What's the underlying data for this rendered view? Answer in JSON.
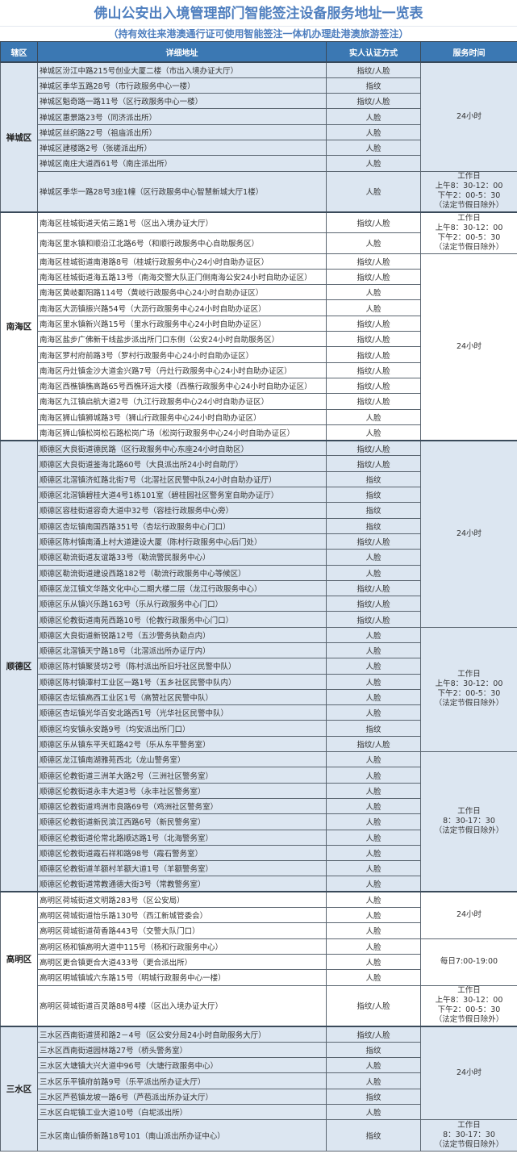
{
  "title": "佛山公安出入境管理部门智能签注设备服务地址一览表",
  "subtitle": "（持有效往来港澳通行证可使用智能签注一体机办理赴港澳旅游签注）",
  "columns": [
    "辖区",
    "详细地址",
    "实人认证方式",
    "服务时间"
  ],
  "colors": {
    "header": "#3b78b3",
    "title": "#4f7fbf",
    "row_blue": "#dce6f1",
    "row_white": "#ffffff"
  },
  "districts": [
    {
      "name": "禅城区",
      "shade": "blue",
      "groups": [
        {
          "hours": "24小时",
          "rows": [
            {
              "address": "禅城区汾江中路215号创业大厦二楼（市出入境办证大厅）",
              "auth": "指纹/人脸"
            },
            {
              "address": "禅城区季华五路28号（市行政服务中心一楼）",
              "auth": "指纹"
            },
            {
              "address": "禅城区魁奇路一路11号（区行政服务中心一楼）",
              "auth": "指纹/人脸"
            },
            {
              "address": "禅城区惠景路23号（同济派出所）",
              "auth": "人脸"
            },
            {
              "address": "禅城区丝织路22号（祖庙派出所）",
              "auth": "人脸"
            },
            {
              "address": "禅城区建楼路2号（张槎派出所）",
              "auth": "人脸"
            },
            {
              "address": "禅城区南庄大道西61号（南庄派出所）",
              "auth": "人脸"
            }
          ]
        },
        {
          "hours": "工作日\n上午8：30-12：00\n下午2：00-5：30\n（法定节假日除外）",
          "rows": [
            {
              "address": "禅城区季华一路28号3座1幢（区行政服务中心智慧新城大厅1楼）",
              "auth": "人脸"
            }
          ]
        }
      ]
    },
    {
      "name": "南海区",
      "shade": "white",
      "groups": [
        {
          "hours": "工作日\n上午8：30-12：00\n下午2：00-5：30\n（法定节假日除外）",
          "rows": [
            {
              "address": "南海区桂城街道天佑三路1号（区出入境办证大厅）",
              "auth": "指纹/人脸"
            },
            {
              "address": "南海区里水镇和顺沿江北路6号（和顺行政服务中心自助服务区）",
              "auth": "人脸"
            }
          ]
        },
        {
          "hours": "24小时",
          "rows": [
            {
              "address": "南海区桂城街道南港路8号（桂城行政服务中心24小时自助办证区）",
              "auth": "指纹/人脸"
            },
            {
              "address": "南海区桂城街道海五路13号（南海交警大队正门侧南海公安24小时自助办证区）",
              "auth": "指纹/人脸"
            },
            {
              "address": "南海区黄岐鄱阳路114号（黄岐行政服务中心24小时自助办证区）",
              "auth": "人脸"
            },
            {
              "address": "南海区大沥镇振兴路54号（大沥行政服务中心24小时自助办证区）",
              "auth": "人脸"
            },
            {
              "address": "南海区里水镇新兴路15号（里水行政服务中心24小时自助办证区）",
              "auth": "指纹/人脸"
            },
            {
              "address": "南海区盐步广佛新干线盐步派出所门口东侧（公安24小时自助服务区）",
              "auth": "指纹/人脸"
            },
            {
              "address": "南海区罗村府前路3号（罗村行政服务中心24小时自助办证区）",
              "auth": "指纹/人脸"
            },
            {
              "address": "南海区丹灶镇金沙大道金兴路7号（丹灶行政服务中心24小时自助办证区）",
              "auth": "指纹/人脸"
            },
            {
              "address": "南海区西樵镇樵高路65号西樵环运大楼（西樵行政服务中心24小时自助办证区）",
              "auth": "指纹/人脸"
            },
            {
              "address": "南海区九江镇启航大道2号（九江行政服务中心24小时自助办证区）",
              "auth": "指纹/人脸"
            },
            {
              "address": "南海区狮山镇狮城路3号（狮山行政服务中心24小时自助办证区）",
              "auth": "人脸"
            },
            {
              "address": "南海区狮山镇松岗松石路松岗广场（松岗行政服务中心24小时自助办证区）",
              "auth": "人脸"
            }
          ]
        }
      ]
    },
    {
      "name": "顺德区",
      "shade": "blue",
      "groups": [
        {
          "hours": "24小时",
          "rows": [
            {
              "address": "顺德区大良街道德民路（区行政服务中心东座24小时自助区）",
              "auth": "指纹/人脸"
            },
            {
              "address": "顺德区大良街道鉴海北路60号（大良派出所24小时自助厅）",
              "auth": "指纹/人脸"
            },
            {
              "address": "顺德区北滘镇济虹路北街7号（北滘社区民警中队24小时自助办证厅）",
              "auth": "指纹"
            },
            {
              "address": "顺德区北滘镇碧桂大道4号1栋101室（碧桂园社区警务室自助办证厅）",
              "auth": "指纹"
            },
            {
              "address": "顺德区容桂街道容奇大道中32号（容桂行政服务中心旁）",
              "auth": "指纹"
            },
            {
              "address": "顺德区杏坛镇南国西路351号（杏坛行政服务中心门口）",
              "auth": "指纹"
            },
            {
              "address": "顺德区陈村镇南涌上村大道建设大厦（陈村行政服务中心后门处）",
              "auth": "指纹/人脸"
            },
            {
              "address": "顺德区勒流街道友谊路33号（勒流警民服务中心）",
              "auth": "人脸"
            },
            {
              "address": "顺德区勒流街道建设西路182号（勒流行政服务中心等候区）",
              "auth": "人脸"
            },
            {
              "address": "顺德区龙江镇文华路文化中心二期大楼二层（龙江行政服务中心）",
              "auth": "指纹/人脸"
            },
            {
              "address": "顺德区乐从镇兴乐路163号（乐从行政服务中心门口）",
              "auth": "指纹/人脸"
            },
            {
              "address": "顺德区伦教街道南苑西路10号（伦教行政服务中心门口）",
              "auth": "指纹/人脸"
            }
          ]
        },
        {
          "hours": "工作日\n上午8：30-12：00\n下午2：00-5：30\n（法定节假日除外）",
          "rows": [
            {
              "address": "顺德区大良街道新锐路12号（五沙警务执勤点内）",
              "auth": "人脸"
            },
            {
              "address": "顺德区北滘镇天宁路18号（北滘派出所办证厅内）",
              "auth": "人脸"
            },
            {
              "address": "顺德区陈村镇聚贤坊2号（陈村派出所旧圩社区民警中队）",
              "auth": "人脸"
            },
            {
              "address": "顺德区陈村镇潭村工业区一路1号（五乡社区民警中队内）",
              "auth": "人脸"
            },
            {
              "address": "顺德区杏坛镇高西工业区1号（高赞社区民警中队）",
              "auth": "人脸"
            },
            {
              "address": "顺德区杏坛镇光华百安北路西1号（光华社区民警中队）",
              "auth": "人脸"
            },
            {
              "address": "顺德区均安镇永安路9号（均安派出所门口）",
              "auth": "指纹"
            },
            {
              "address": "顺德区乐从镇东平天虹路42号（乐从东平警务室）",
              "auth": "指纹/人脸"
            }
          ]
        },
        {
          "hours": "工作日\n8：30-17：30\n（法定节假日除外）",
          "rows": [
            {
              "address": "顺德区龙江镇南湖雅苑西北（龙山警务室）",
              "auth": "人脸"
            },
            {
              "address": "顺德区伦教街道三洲羊大路2号（三洲社区警务室）",
              "auth": "人脸"
            },
            {
              "address": "顺德区伦教街道永丰大道3号（永丰社区警务室）",
              "auth": "人脸"
            },
            {
              "address": "顺德区伦教街道鸡洲市良路69号（鸡洲社区警务室）",
              "auth": "人脸"
            },
            {
              "address": "顺德区伦教街道新民滨江西路6号（新民警务室）",
              "auth": "人脸"
            },
            {
              "address": "顺德区伦教街道伦常北路顺达路1号（北海警务室）",
              "auth": "人脸"
            },
            {
              "address": "顺德区伦教街道霞石祥和路98号（霞石警务室）",
              "auth": "人脸"
            },
            {
              "address": "顺德区伦教街道羊额村羊额大道1号（羊额警务室）",
              "auth": "人脸"
            },
            {
              "address": "顺德区伦教街道常教通德大街3号（常教警务室）",
              "auth": "人脸"
            }
          ]
        }
      ]
    },
    {
      "name": "高明区",
      "shade": "white",
      "groups": [
        {
          "hours": "24小时",
          "rows": [
            {
              "address": "高明区荷城街道文明路283号（区公安局）",
              "auth": "人脸"
            },
            {
              "address": "高明区荷城街道怡乐路130号（西江新城管委会）",
              "auth": "人脸"
            },
            {
              "address": "高明区荷城街道荷香路443号（交警大队门口）",
              "auth": "人脸"
            }
          ]
        },
        {
          "hours": "每日7:00-19:00",
          "rows": [
            {
              "address": "高明区杨和镇高明大道中115号（杨和行政服务中心）",
              "auth": "人脸"
            },
            {
              "address": "高明区更合镇更合大道433号（更合派出所）",
              "auth": "人脸"
            },
            {
              "address": "高明区明城镇城六东路15号（明城行政服务中心一楼）",
              "auth": "人脸"
            }
          ]
        },
        {
          "hours": "工作日\n上午8：30-12：00\n下午2：00-5：30\n（法定节假日除外）",
          "rows": [
            {
              "address": "高明区荷城街道百灵路88号4楼（区出入境办证大厅）",
              "auth": "指纹/人脸"
            }
          ]
        }
      ]
    },
    {
      "name": "三水区",
      "shade": "blue",
      "groups": [
        {
          "hours": "24小时",
          "rows": [
            {
              "address": "三水区西南街道贤和路2－4号（区公安分局24小时自助服务大厅）",
              "auth": "指纹/人脸"
            },
            {
              "address": "三水区西南街道园林路27号（桥头警务室）",
              "auth": "指纹"
            },
            {
              "address": "三水区大塘镇大兴大道中96号（大塘行政服务中心）",
              "auth": "人脸"
            },
            {
              "address": "三水区乐平镇府前路9号（乐平派出所办证大厅）",
              "auth": "人脸"
            },
            {
              "address": "三水区芦苞镇龙坡一路6号（芦苞派出所办证大厅）",
              "auth": "指纹"
            },
            {
              "address": "三水区白坭镇工业大道10号（白坭派出所）",
              "auth": "人脸"
            }
          ]
        },
        {
          "hours": "工作日\n8：30-17：30\n（法定节假日除外）",
          "rows": [
            {
              "address": "三水区南山镇侨新路18号101（南山派出所办证中心）",
              "auth": "指纹"
            }
          ]
        }
      ]
    }
  ]
}
